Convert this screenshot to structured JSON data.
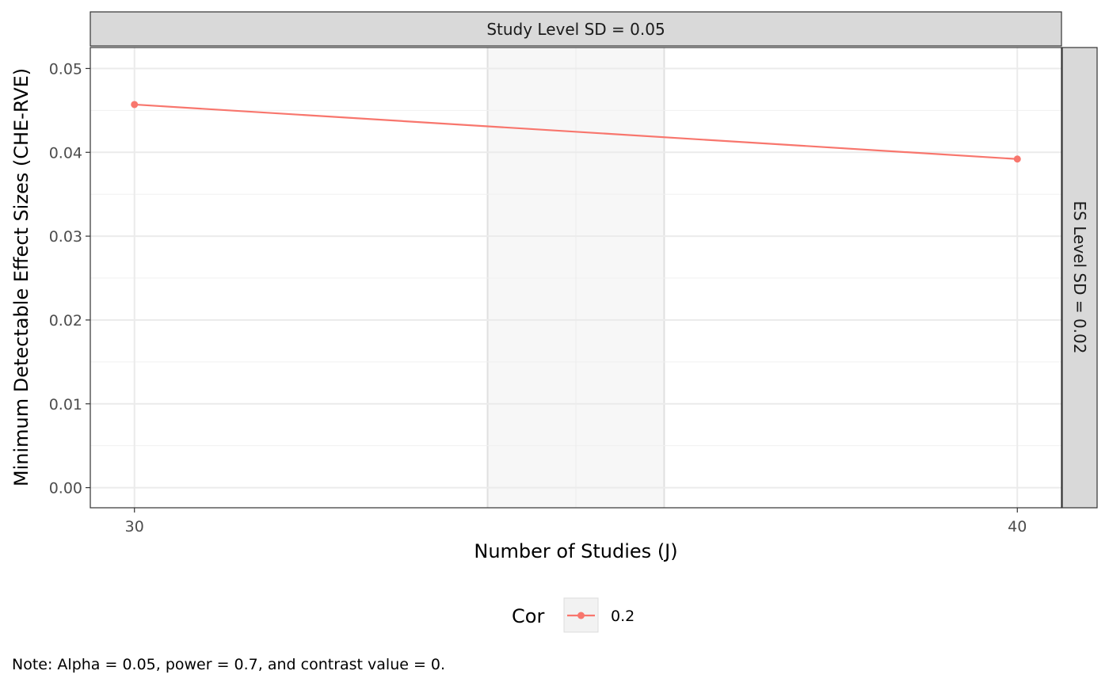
{
  "chart_data": {
    "type": "line",
    "title": "",
    "facet_top_label": "Study Level SD = 0.05",
    "facet_right_label": "ES Level SD = 0.02",
    "xlabel": "Number of Studies (J)",
    "ylabel": "Minimum Detectable Effect Sizes (CHE-RVE)",
    "x_ticks": [
      30,
      40
    ],
    "y_ticks": [
      0.0,
      0.01,
      0.02,
      0.03,
      0.04,
      0.05
    ],
    "y_tick_labels": [
      "0.00",
      "0.01",
      "0.02",
      "0.03",
      "0.04",
      "0.05"
    ],
    "x_tick_labels": [
      "30",
      "40"
    ],
    "xlim": [
      29.5,
      40.5
    ],
    "ylim": [
      -0.0024,
      0.0525
    ],
    "highlight_band": [
      34,
      36
    ],
    "grid": true,
    "legend_position": "bottom",
    "legend_title": "Cor",
    "series": [
      {
        "name": "0.2",
        "color": "#F8766D",
        "x": [
          30,
          40
        ],
        "y": [
          0.0457,
          0.0392
        ]
      }
    ],
    "caption": "Note: Alpha = 0.05, power = 0.7, and contrast value = 0."
  }
}
